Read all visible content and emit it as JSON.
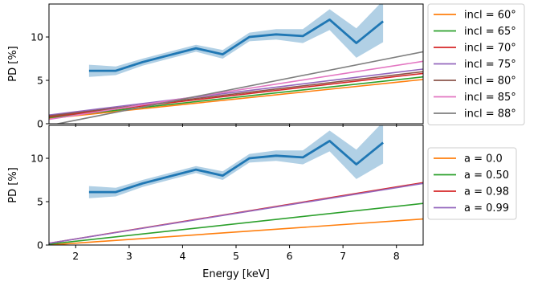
{
  "chart_data": [
    {
      "type": "line",
      "panel": "top",
      "ylabel": "PD [%]",
      "xlabel": "",
      "xlim": [
        1.5,
        8.5
      ],
      "ylim": [
        0,
        13.8
      ],
      "xticks": [
        2,
        3,
        4,
        5,
        6,
        7,
        8
      ],
      "yticks": [
        0,
        5,
        10
      ],
      "show_x_tick_labels": false,
      "grid": false,
      "legend_placement": "outside-right",
      "observed": {
        "color": "#1f77b4",
        "band_color": "#1f77b4",
        "x": [
          2.25,
          2.75,
          3.25,
          3.75,
          4.25,
          4.75,
          5.25,
          5.75,
          6.25,
          6.75,
          7.25,
          7.75
        ],
        "y": [
          6.1,
          6.1,
          7.1,
          7.9,
          8.7,
          8.0,
          10.0,
          10.3,
          10.1,
          12.0,
          9.3,
          11.8
        ],
        "lower": [
          5.4,
          5.6,
          6.7,
          7.5,
          8.3,
          7.5,
          9.5,
          9.7,
          9.3,
          10.8,
          7.6,
          9.4
        ],
        "upper": [
          6.8,
          6.6,
          7.5,
          8.3,
          9.1,
          8.5,
          10.5,
          10.9,
          10.9,
          13.2,
          11.0,
          14.2
        ]
      },
      "series": [
        {
          "name": "incl = 60°",
          "color": "#ff7f0e",
          "x": [
            1.5,
            8.5
          ],
          "y": [
            0.6,
            5.1
          ]
        },
        {
          "name": "incl = 65°",
          "color": "#2ca02c",
          "x": [
            1.5,
            8.5
          ],
          "y": [
            0.7,
            5.4
          ]
        },
        {
          "name": "incl = 70°",
          "color": "#d62728",
          "x": [
            1.5,
            8.5
          ],
          "y": [
            0.8,
            5.8
          ]
        },
        {
          "name": "incl = 75°",
          "color": "#9467bd",
          "x": [
            1.5,
            8.5
          ],
          "y": [
            1.0,
            6.3
          ]
        },
        {
          "name": "incl = 80°",
          "color": "#8c564b",
          "x": [
            1.5,
            8.5
          ],
          "y": [
            0.9,
            6.0
          ]
        },
        {
          "name": "incl = 85°",
          "color": "#e377c2",
          "x": [
            1.5,
            8.5
          ],
          "y": [
            0.5,
            7.2
          ]
        },
        {
          "name": "incl = 88°",
          "color": "#7f7f7f",
          "x": [
            1.5,
            8.5
          ],
          "y": [
            -0.2,
            8.3
          ]
        }
      ]
    },
    {
      "type": "line",
      "panel": "bottom",
      "ylabel": "PD [%]",
      "xlabel": "Energy [keV]",
      "xlim": [
        1.5,
        8.5
      ],
      "ylim": [
        0,
        13.8
      ],
      "xticks": [
        2,
        3,
        4,
        5,
        6,
        7,
        8
      ],
      "yticks": [
        0,
        5,
        10
      ],
      "show_x_tick_labels": true,
      "grid": false,
      "legend_placement": "outside-right",
      "observed": {
        "color": "#1f77b4",
        "band_color": "#1f77b4",
        "x": [
          2.25,
          2.75,
          3.25,
          3.75,
          4.25,
          4.75,
          5.25,
          5.75,
          6.25,
          6.75,
          7.25,
          7.75
        ],
        "y": [
          6.1,
          6.1,
          7.1,
          7.9,
          8.7,
          8.0,
          10.0,
          10.3,
          10.1,
          12.0,
          9.3,
          11.8
        ],
        "lower": [
          5.4,
          5.6,
          6.7,
          7.5,
          8.3,
          7.5,
          9.5,
          9.7,
          9.3,
          10.8,
          7.6,
          9.4
        ],
        "upper": [
          6.8,
          6.6,
          7.5,
          8.3,
          9.1,
          8.5,
          10.5,
          10.9,
          10.9,
          13.2,
          11.0,
          14.2
        ]
      },
      "series": [
        {
          "name": "a = 0.0",
          "color": "#ff7f0e",
          "x": [
            1.5,
            8.5
          ],
          "y": [
            0.0,
            3.0
          ]
        },
        {
          "name": "a = 0.50",
          "color": "#2ca02c",
          "x": [
            1.5,
            8.5
          ],
          "y": [
            0.1,
            4.8
          ]
        },
        {
          "name": "a = 0.98",
          "color": "#d62728",
          "x": [
            1.5,
            8.5
          ],
          "y": [
            0.2,
            7.2
          ]
        },
        {
          "name": "a = 0.99",
          "color": "#9467bd",
          "x": [
            1.5,
            8.5
          ],
          "y": [
            0.2,
            7.1
          ]
        }
      ]
    }
  ]
}
